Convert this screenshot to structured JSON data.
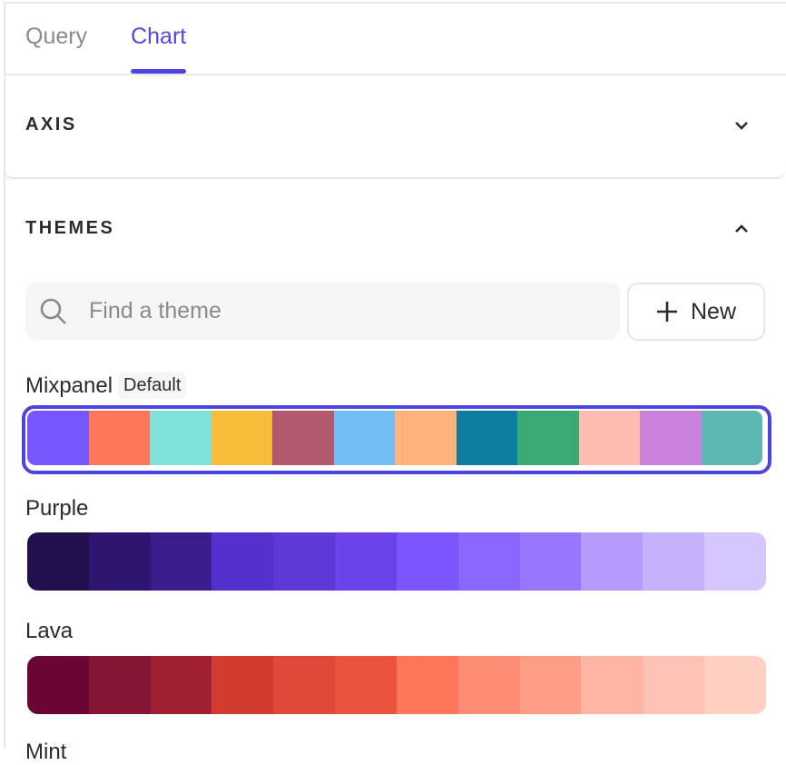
{
  "tabs": [
    {
      "label": "Query",
      "active": false
    },
    {
      "label": "Chart",
      "active": true
    }
  ],
  "accent": "#4f44e0",
  "sections": {
    "axis": {
      "title": "AXIS",
      "state": "collapsed",
      "icon": "chevron-down-icon"
    },
    "themes": {
      "title": "THEMES",
      "state": "expanded",
      "icon": "chevron-up-icon"
    }
  },
  "search": {
    "placeholder": "Find a theme",
    "value": ""
  },
  "new_button": {
    "label": "New",
    "icon": "plus-icon"
  },
  "themes": [
    {
      "name": "Mixpanel",
      "badge": "Default",
      "selected": true,
      "colors": [
        "#7856ff",
        "#ff7557",
        "#80e1d9",
        "#f8bc3b",
        "#b2596e",
        "#72bef4",
        "#ffb27a",
        "#0d7ea0",
        "#3ba974",
        "#febbb2",
        "#c981dd",
        "#5bb7af"
      ]
    },
    {
      "name": "Purple",
      "colors": [
        "#22104e",
        "#2f1470",
        "#3b1c8c",
        "#5430cc",
        "#5e38d6",
        "#6c43e8",
        "#7d55ff",
        "#8a66ff",
        "#9877ff",
        "#b59cfc",
        "#c6b1fd",
        "#d6c6fe"
      ]
    },
    {
      "name": "Lava",
      "colors": [
        "#6b0535",
        "#841534",
        "#a02033",
        "#d23b30",
        "#e0483a",
        "#e9533e",
        "#ff7658",
        "#ff8c74",
        "#ff9e86",
        "#ffb4a6",
        "#ffc2b5",
        "#ffd0c2"
      ]
    },
    {
      "name": "Mint"
    }
  ]
}
